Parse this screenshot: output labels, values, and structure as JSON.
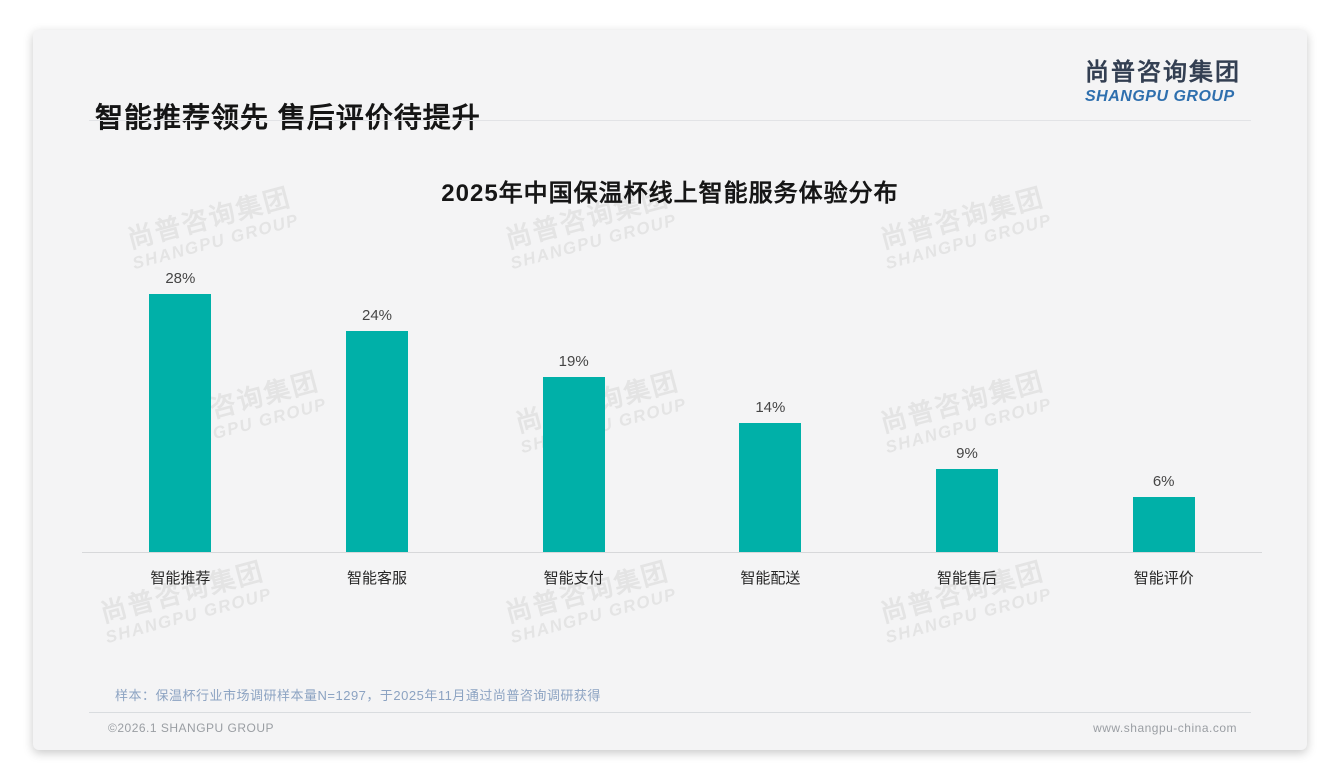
{
  "slide": {
    "title": "智能推荐领先 售后评价待提升",
    "logo": {
      "name_cn": "尚普咨询集团",
      "name_en": "SHANGPU GROUP"
    },
    "watermark": {
      "line1_cn": "尚普咨询集团",
      "line2_en": "SHANGPU GROUP"
    },
    "sample_note": "样本：保温杯行业市场调研样本量N=1297，于2025年11月通过尚普咨询调研获得",
    "footer": {
      "copyright": "©2026.1 SHANGPU GROUP",
      "website": "www.shangpu-china.com"
    }
  },
  "chart_data": {
    "type": "bar",
    "title": "2025年中国保温杯线上智能服务体验分布",
    "categories": [
      "智能推荐",
      "智能客服",
      "智能支付",
      "智能配送",
      "智能售后",
      "智能评价"
    ],
    "values": [
      28,
      24,
      19,
      14,
      9,
      6
    ],
    "unit": "%",
    "value_labels": [
      "28%",
      "24%",
      "19%",
      "14%",
      "9%",
      "6%"
    ],
    "xlabel": "",
    "ylabel": "",
    "ylim": [
      0,
      30
    ],
    "grid": false,
    "legend": false,
    "bar_color": "#00B0A8"
  },
  "colors": {
    "accent_teal": "#00B0A8",
    "logo_cn": "#333F52",
    "logo_en": "#2E6FAE",
    "note_text": "#8CA3C2",
    "footer_text": "#9A9EA3",
    "axis_line": "#D7D8DA"
  }
}
